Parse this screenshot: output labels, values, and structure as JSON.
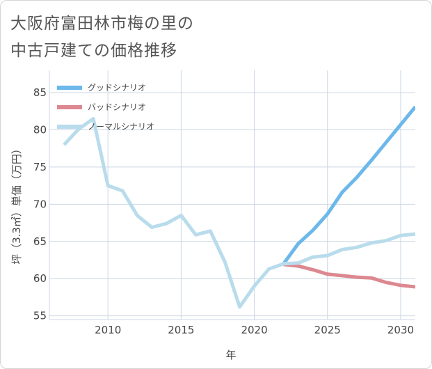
{
  "title_lines": [
    "大阪府富田林市梅の里の",
    "中古戸建ての価格推移"
  ],
  "colors": {
    "good": "#6cb8ea",
    "bad": "#dd8890",
    "normal": "#b9dcec",
    "grid": "#ccd6e4",
    "text": "#444444"
  },
  "chart_data": {
    "type": "line",
    "title": "大阪府富田林市梅の里の中古戸建ての価格推移",
    "xlabel": "年",
    "ylabel": "坪（3.3㎡）単価（万円）",
    "xlim": [
      2006,
      2031
    ],
    "ylim": [
      54.5,
      88
    ],
    "x_ticks": [
      2010,
      2015,
      2020,
      2025,
      2030
    ],
    "y_ticks": [
      55,
      60,
      65,
      70,
      75,
      80,
      85
    ],
    "grid": true,
    "legend_position": "top-left",
    "series": [
      {
        "name": "グッドシナリオ",
        "color_key": "good",
        "x": [
          2022,
          2023,
          2024,
          2025,
          2026,
          2027,
          2028,
          2029,
          2030,
          2031
        ],
        "y": [
          62.0,
          64.7,
          66.5,
          68.7,
          71.6,
          73.6,
          75.9,
          78.3,
          80.7,
          83.1
        ]
      },
      {
        "name": "バッドシナリオ",
        "color_key": "bad",
        "x": [
          2022,
          2023,
          2024,
          2025,
          2026,
          2027,
          2028,
          2029,
          2030,
          2031
        ],
        "y": [
          61.9,
          61.7,
          61.2,
          60.6,
          60.4,
          60.2,
          60.1,
          59.5,
          59.1,
          58.9
        ]
      },
      {
        "name": "ノーマルシナリオ",
        "color_key": "normal",
        "x": [
          2007,
          2008,
          2009,
          2010,
          2011,
          2012,
          2013,
          2014,
          2015,
          2016,
          2017,
          2018,
          2019,
          2020,
          2021,
          2022,
          2023,
          2024,
          2025,
          2026,
          2027,
          2028,
          2029,
          2030,
          2031
        ],
        "y": [
          78.0,
          80.1,
          81.5,
          72.5,
          71.8,
          68.5,
          66.9,
          67.4,
          68.5,
          65.9,
          66.4,
          62.2,
          56.2,
          59.0,
          61.3,
          62.0,
          62.1,
          62.9,
          63.1,
          63.9,
          64.2,
          64.8,
          65.1,
          65.8,
          66.0
        ]
      }
    ]
  }
}
